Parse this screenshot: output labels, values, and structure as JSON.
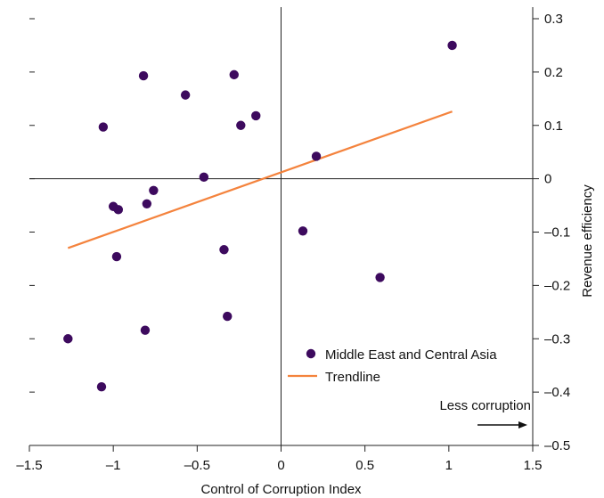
{
  "chart_data": {
    "type": "scatter",
    "xlabel": "Control of Corruption Index",
    "ylabel": "Revenue efficiency",
    "xlim": [
      -1.5,
      1.5
    ],
    "ylim": [
      -0.5,
      0.3
    ],
    "x_ticks": [
      -1.5,
      -1,
      -0.5,
      0,
      0.5,
      1,
      1.5
    ],
    "x_tick_labels": [
      "–1.5",
      "–1",
      "–0.5",
      "0",
      "0.5",
      "1",
      "1.5"
    ],
    "y_ticks": [
      0.3,
      0.2,
      0.1,
      0,
      -0.1,
      -0.2,
      -0.3,
      -0.4,
      -0.5
    ],
    "y_tick_labels": [
      "0.3",
      "0.2",
      "0.1",
      "0",
      "–0.1",
      "–0.2",
      "–0.3",
      "–0.4",
      "–0.5"
    ],
    "grid": false,
    "legend_position": "bottom-right",
    "series": [
      {
        "name": "Middle East and Central Asia",
        "color": "#3d0a5e",
        "points": [
          {
            "x": 1.02,
            "y": 0.25
          },
          {
            "x": -0.82,
            "y": 0.193
          },
          {
            "x": -0.28,
            "y": 0.195
          },
          {
            "x": -0.57,
            "y": 0.157
          },
          {
            "x": -0.15,
            "y": 0.118
          },
          {
            "x": -1.06,
            "y": 0.097
          },
          {
            "x": -0.24,
            "y": 0.1
          },
          {
            "x": 0.21,
            "y": 0.042
          },
          {
            "x": -0.46,
            "y": 0.003
          },
          {
            "x": -0.76,
            "y": -0.022
          },
          {
            "x": -0.8,
            "y": -0.047
          },
          {
            "x": -1.0,
            "y": -0.052
          },
          {
            "x": -0.97,
            "y": -0.058
          },
          {
            "x": 0.13,
            "y": -0.098
          },
          {
            "x": -0.34,
            "y": -0.133
          },
          {
            "x": -0.98,
            "y": -0.146
          },
          {
            "x": 0.59,
            "y": -0.185
          },
          {
            "x": -0.32,
            "y": -0.258
          },
          {
            "x": -0.81,
            "y": -0.284
          },
          {
            "x": -1.27,
            "y": -0.3
          },
          {
            "x": -1.07,
            "y": -0.39
          }
        ]
      },
      {
        "name": "Trendline",
        "color": "#f4833d",
        "line": [
          {
            "x": -1.27,
            "y": -0.13
          },
          {
            "x": 1.02,
            "y": 0.126
          }
        ]
      }
    ],
    "annotation": "Less corruption"
  }
}
